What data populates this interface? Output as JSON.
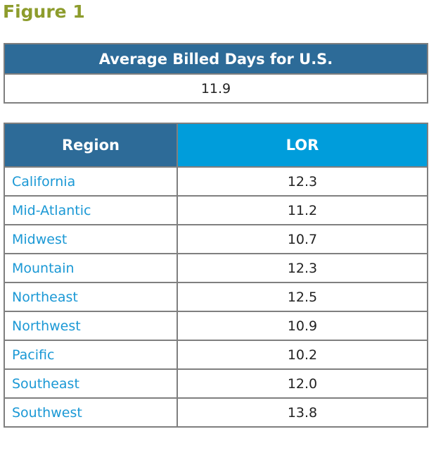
{
  "figure_title": "Figure 1",
  "us_table": {
    "header": "Average Billed Days for U.S.",
    "value": "11.9"
  },
  "chart_data": {
    "type": "table",
    "columns": [
      "Region",
      "LOR"
    ],
    "rows": [
      {
        "region": "California",
        "lor": "12.3"
      },
      {
        "region": "Mid-Atlantic",
        "lor": "11.2"
      },
      {
        "region": "Midwest",
        "lor": "10.7"
      },
      {
        "region": "Mountain",
        "lor": "12.3"
      },
      {
        "region": "Northeast",
        "lor": "12.5"
      },
      {
        "region": "Northwest",
        "lor": "10.9"
      },
      {
        "region": "Pacific",
        "lor": "10.2"
      },
      {
        "region": "Southeast",
        "lor": "12.0"
      },
      {
        "region": "Southwest",
        "lor": "13.8"
      }
    ]
  },
  "colors": {
    "title": "#8d9c2c",
    "header_dark": "#2d6b98",
    "header_light": "#009ddb",
    "region_text": "#1a98d5"
  }
}
